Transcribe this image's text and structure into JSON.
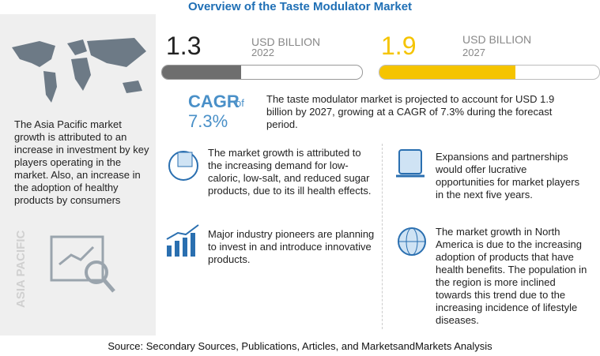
{
  "title": "Overview of the Taste Modulator Market",
  "left_panel": {
    "text": "The Asia Pacific market growth is attributed to an increase in investment by key players operating in the market. Also, an increase in the adoption of healthy products by consumers",
    "region": "ASIA PACIFIC"
  },
  "metrics": [
    {
      "value": "1.3",
      "unit": "USD BILLION",
      "year": "2022"
    },
    {
      "value": "1.9",
      "unit": "USD BILLION",
      "year": "2027"
    }
  ],
  "cagr": {
    "label": "CAGR",
    "of": "of",
    "value": "7.3%"
  },
  "summary": "The taste modulator market is projected to account for USD 1.9 billion by 2027, growing at a CAGR of 7.3% during the forecast period.",
  "points": [
    "The market growth is attributed to the increasing demand for low-caloric, low-salt, and reduced sugar products, due to its ill health effects.",
    "Major industry pioneers are planning to invest in and introduce innovative products.",
    "Expansions and partnerships would offer lucrative opportunities for market players in the next five years.",
    "The market growth in North America is due to the increasing adoption of products that have health benefits. The population in the region is more inclined towards this trend due to the increasing incidence of lifestyle diseases."
  ],
  "source": "Source: Secondary Sources, Publications, Articles, and MarketsandMarkets Analysis"
}
